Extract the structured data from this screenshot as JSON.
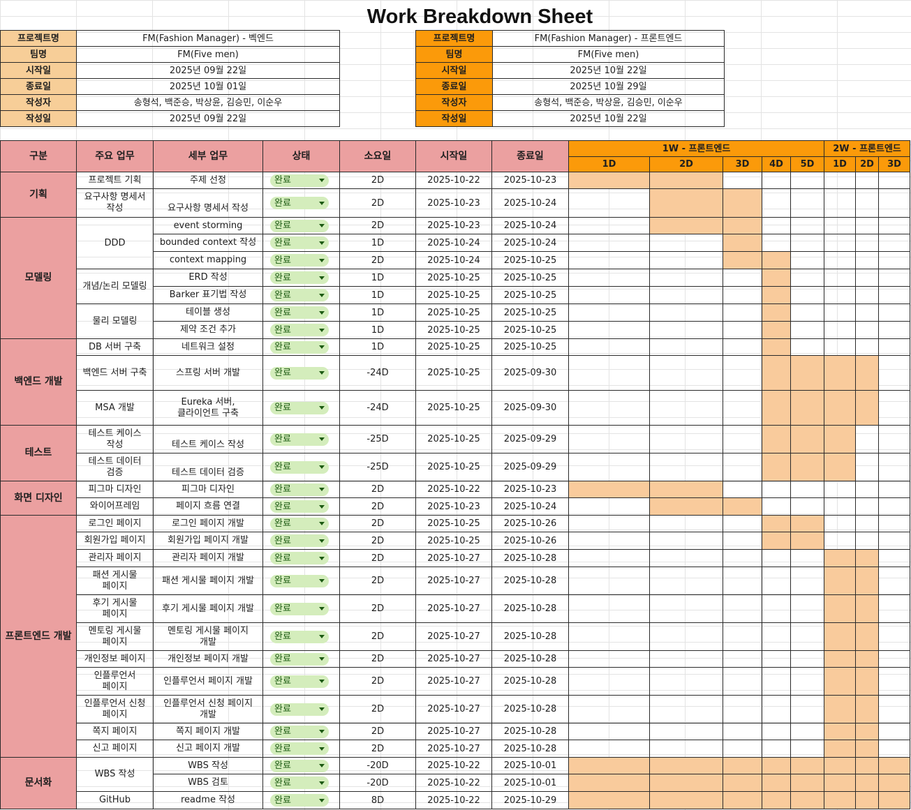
{
  "title": "Work Breakdown Sheet",
  "info_back": [
    {
      "label": "프로젝트명",
      "value": "FM(Fashion Manager) - 벡엔드"
    },
    {
      "label": "팀명",
      "value": "FM(Five men)"
    },
    {
      "label": "시작일",
      "value": "2025년 09월 22일"
    },
    {
      "label": "종료일",
      "value": "2025년 10월 01일"
    },
    {
      "label": "작성자",
      "value": "송형석, 백준승, 박상윤, 김승민, 이순우"
    },
    {
      "label": "작성일",
      "value": "2025년 09월 22일"
    }
  ],
  "info_front": [
    {
      "label": "프로젝트명",
      "value": "FM(Fashion Manager) - 프론트엔드"
    },
    {
      "label": "팀명",
      "value": "FM(Five men)"
    },
    {
      "label": "시작일",
      "value": "2025년 10월 22일"
    },
    {
      "label": "종료일",
      "value": "2025년 10월 29일"
    },
    {
      "label": "작성자",
      "value": "송형석, 백준승, 박상윤, 김승민, 이순우"
    },
    {
      "label": "작성일",
      "value": "2025년 10월 22일"
    }
  ],
  "headers": {
    "category": "구분",
    "main_task": "주요 업무",
    "sub_task": "세부 업무",
    "status": "상태",
    "duration": "소요일",
    "start": "시작일",
    "end": "종료일"
  },
  "weeks": [
    "1W - 프론트엔드",
    "2W - 프론트엔드"
  ],
  "days": [
    "1D",
    "2D",
    "3D",
    "4D",
    "5D",
    "1D",
    "2D",
    "3D"
  ],
  "status_icon": "dropdown-caret-icon",
  "colors": {
    "header_pink": "#eba0a0",
    "header_orange": "#fb9a0a",
    "info_label": "#f7ce98",
    "gantt_fill": "#f9cb9c",
    "status_pill": "#d4edbc"
  },
  "rows": [
    {
      "cat": "기획",
      "main": "프로젝트 기획",
      "task": "주제 선정",
      "status": "완료",
      "dur": "2D",
      "start": "2025-10-22",
      "end": "2025-10-23",
      "gantt": [
        1,
        1,
        0,
        0,
        0,
        0,
        0,
        0
      ]
    },
    {
      "cat": "",
      "main": "요구사항 명세서\n작성",
      "task": "\n요구사항 명세서 작성",
      "status": "완료",
      "dur": "2D",
      "start": "2025-10-23",
      "end": "2025-10-24",
      "gantt": [
        0,
        1,
        1,
        0,
        0,
        0,
        0,
        0
      ]
    },
    {
      "cat": "모델링",
      "main": "DDD",
      "task": "event storming",
      "status": "완료",
      "dur": "2D",
      "start": "2025-10-23",
      "end": "2025-10-24",
      "gantt": [
        0,
        1,
        1,
        0,
        0,
        0,
        0,
        0
      ]
    },
    {
      "cat": "",
      "main": "",
      "task": "bounded context 작성",
      "status": "완료",
      "dur": "1D",
      "start": "2025-10-24",
      "end": "2025-10-24",
      "gantt": [
        0,
        0,
        1,
        0,
        0,
        0,
        0,
        0
      ]
    },
    {
      "cat": "",
      "main": "",
      "task": "context mapping",
      "status": "완료",
      "dur": "2D",
      "start": "2025-10-24",
      "end": "2025-10-25",
      "gantt": [
        0,
        0,
        1,
        1,
        0,
        0,
        0,
        0
      ]
    },
    {
      "cat": "",
      "main": "개념/논리 모델링",
      "task": "ERD 작성",
      "status": "완료",
      "dur": "1D",
      "start": "2025-10-25",
      "end": "2025-10-25",
      "gantt": [
        0,
        0,
        0,
        1,
        0,
        0,
        0,
        0
      ]
    },
    {
      "cat": "",
      "main": "",
      "task": "Barker 표기법 작성",
      "status": "완료",
      "dur": "1D",
      "start": "2025-10-25",
      "end": "2025-10-25",
      "gantt": [
        0,
        0,
        0,
        1,
        0,
        0,
        0,
        0
      ]
    },
    {
      "cat": "",
      "main": "물리 모델링",
      "task": "테이블 생성",
      "status": "완료",
      "dur": "1D",
      "start": "2025-10-25",
      "end": "2025-10-25",
      "gantt": [
        0,
        0,
        0,
        1,
        0,
        0,
        0,
        0
      ]
    },
    {
      "cat": "",
      "main": "",
      "task": "제약 조건 추가",
      "status": "완료",
      "dur": "1D",
      "start": "2025-10-25",
      "end": "2025-10-25",
      "gantt": [
        0,
        0,
        0,
        1,
        0,
        0,
        0,
        0
      ]
    },
    {
      "cat": "백엔드 개발",
      "main": "DB 서버 구축",
      "task": "네트워크 설정",
      "status": "완료",
      "dur": "1D",
      "start": "2025-10-25",
      "end": "2025-10-25",
      "gantt": [
        0,
        0,
        0,
        1,
        0,
        0,
        0,
        0
      ]
    },
    {
      "cat": "",
      "main": "백엔드 서버 구축",
      "task": "스프링 서버 개발",
      "status": "완료",
      "dur": "-24D",
      "start": "2025-10-25",
      "end": "2025-09-30",
      "gantt": [
        0,
        0,
        0,
        1,
        1,
        1,
        1,
        0
      ]
    },
    {
      "cat": "",
      "main": "MSA 개발",
      "task": "Eureka 서버,\n클라이언트 구축",
      "status": "완료",
      "dur": "-24D",
      "start": "2025-10-25",
      "end": "2025-09-30",
      "gantt": [
        0,
        0,
        0,
        1,
        1,
        1,
        1,
        0
      ]
    },
    {
      "cat": "테스트",
      "main": "테스트 케이스\n작성",
      "task": "\n테스트 케이스 작성",
      "status": "완료",
      "dur": "-25D",
      "start": "2025-10-25",
      "end": "2025-09-29",
      "gantt": [
        0,
        0,
        0,
        1,
        1,
        1,
        0,
        0
      ]
    },
    {
      "cat": "",
      "main": "테스트 데이터\n검증",
      "task": "\n테스트 데이터 검증",
      "status": "완료",
      "dur": "-25D",
      "start": "2025-10-25",
      "end": "2025-09-29",
      "gantt": [
        0,
        0,
        0,
        1,
        1,
        1,
        0,
        0
      ]
    },
    {
      "cat": "화면 디자인",
      "main": "피그마 디자인",
      "task": "피그마 디자인",
      "status": "완료",
      "dur": "2D",
      "start": "2025-10-22",
      "end": "2025-10-23",
      "gantt": [
        1,
        1,
        0,
        0,
        0,
        0,
        0,
        0
      ]
    },
    {
      "cat": "",
      "main": "와이어프레임",
      "task": "페이지 흐름 연결",
      "status": "완료",
      "dur": "2D",
      "start": "2025-10-23",
      "end": "2025-10-24",
      "gantt": [
        0,
        1,
        1,
        0,
        0,
        0,
        0,
        0
      ]
    },
    {
      "cat": "프론트엔드 개발",
      "main": "로그인 페이지",
      "task": "로그인 페이지 개발",
      "status": "완료",
      "dur": "2D",
      "start": "2025-10-25",
      "end": "2025-10-26",
      "gantt": [
        0,
        0,
        0,
        1,
        1,
        0,
        0,
        0
      ]
    },
    {
      "cat": "",
      "main": "회원가입 페이지",
      "task": "회원가입 페이지 개발",
      "status": "완료",
      "dur": "2D",
      "start": "2025-10-25",
      "end": "2025-10-26",
      "gantt": [
        0,
        0,
        0,
        1,
        1,
        0,
        0,
        0
      ]
    },
    {
      "cat": "",
      "main": "관리자 페이지",
      "task": "관리자 페이지 개발",
      "status": "완료",
      "dur": "2D",
      "start": "2025-10-27",
      "end": "2025-10-28",
      "gantt": [
        0,
        0,
        0,
        0,
        0,
        1,
        1,
        0
      ]
    },
    {
      "cat": "",
      "main": "패션 게시물\n페이지",
      "task": "패션 게시물 페이지 개발",
      "status": "완료",
      "dur": "2D",
      "start": "2025-10-27",
      "end": "2025-10-28",
      "gantt": [
        0,
        0,
        0,
        0,
        0,
        1,
        1,
        0
      ]
    },
    {
      "cat": "",
      "main": "후기 게시물\n페이지",
      "task": "후기 게시물 페이지 개발",
      "status": "완료",
      "dur": "2D",
      "start": "2025-10-27",
      "end": "2025-10-28",
      "gantt": [
        0,
        0,
        0,
        0,
        0,
        1,
        1,
        0
      ]
    },
    {
      "cat": "",
      "main": "멘토링 게시물\n페이지",
      "task": "멘토링 게시물 페이지\n개발",
      "status": "완료",
      "dur": "2D",
      "start": "2025-10-27",
      "end": "2025-10-28",
      "gantt": [
        0,
        0,
        0,
        0,
        0,
        1,
        1,
        0
      ]
    },
    {
      "cat": "",
      "main": "개인정보 페이지",
      "task": "개인정보 페이지 개발",
      "status": "완료",
      "dur": "2D",
      "start": "2025-10-27",
      "end": "2025-10-28",
      "gantt": [
        0,
        0,
        0,
        0,
        0,
        1,
        1,
        0
      ]
    },
    {
      "cat": "",
      "main": "인플루언서\n페이지",
      "task": "인플루언서 페이지 개발",
      "status": "완료",
      "dur": "2D",
      "start": "2025-10-27",
      "end": "2025-10-28",
      "gantt": [
        0,
        0,
        0,
        0,
        0,
        1,
        1,
        0
      ]
    },
    {
      "cat": "",
      "main": "인플루언서 신청\n페이지",
      "task": "인플루언서 신청 페이지\n개발",
      "status": "완료",
      "dur": "2D",
      "start": "2025-10-27",
      "end": "2025-10-28",
      "gantt": [
        0,
        0,
        0,
        0,
        0,
        1,
        1,
        0
      ]
    },
    {
      "cat": "",
      "main": "쪽지 페이지",
      "task": "쪽지 페이지 개발",
      "status": "완료",
      "dur": "2D",
      "start": "2025-10-27",
      "end": "2025-10-28",
      "gantt": [
        0,
        0,
        0,
        0,
        0,
        1,
        1,
        0
      ]
    },
    {
      "cat": "",
      "main": "신고 페이지",
      "task": "신고 페이지 개발",
      "status": "완료",
      "dur": "2D",
      "start": "2025-10-27",
      "end": "2025-10-28",
      "gantt": [
        0,
        0,
        0,
        0,
        0,
        1,
        1,
        0
      ]
    },
    {
      "cat": "문서화",
      "main": "WBS 작성",
      "task": "WBS 작성",
      "status": "완료",
      "dur": "-20D",
      "start": "2025-10-22",
      "end": "2025-10-01",
      "gantt": [
        1,
        1,
        1,
        1,
        1,
        1,
        1,
        1
      ]
    },
    {
      "cat": "",
      "main": "",
      "task": "WBS 검토",
      "status": "완료",
      "dur": "-20D",
      "start": "2025-10-22",
      "end": "2025-10-01",
      "gantt": [
        1,
        1,
        1,
        1,
        1,
        1,
        1,
        1
      ]
    },
    {
      "cat": "",
      "main": "GitHub",
      "task": "readme  작성",
      "status": "완료",
      "dur": "8D",
      "start": "2025-10-22",
      "end": "2025-10-29",
      "gantt": [
        1,
        1,
        1,
        1,
        1,
        1,
        1,
        1
      ]
    }
  ]
}
